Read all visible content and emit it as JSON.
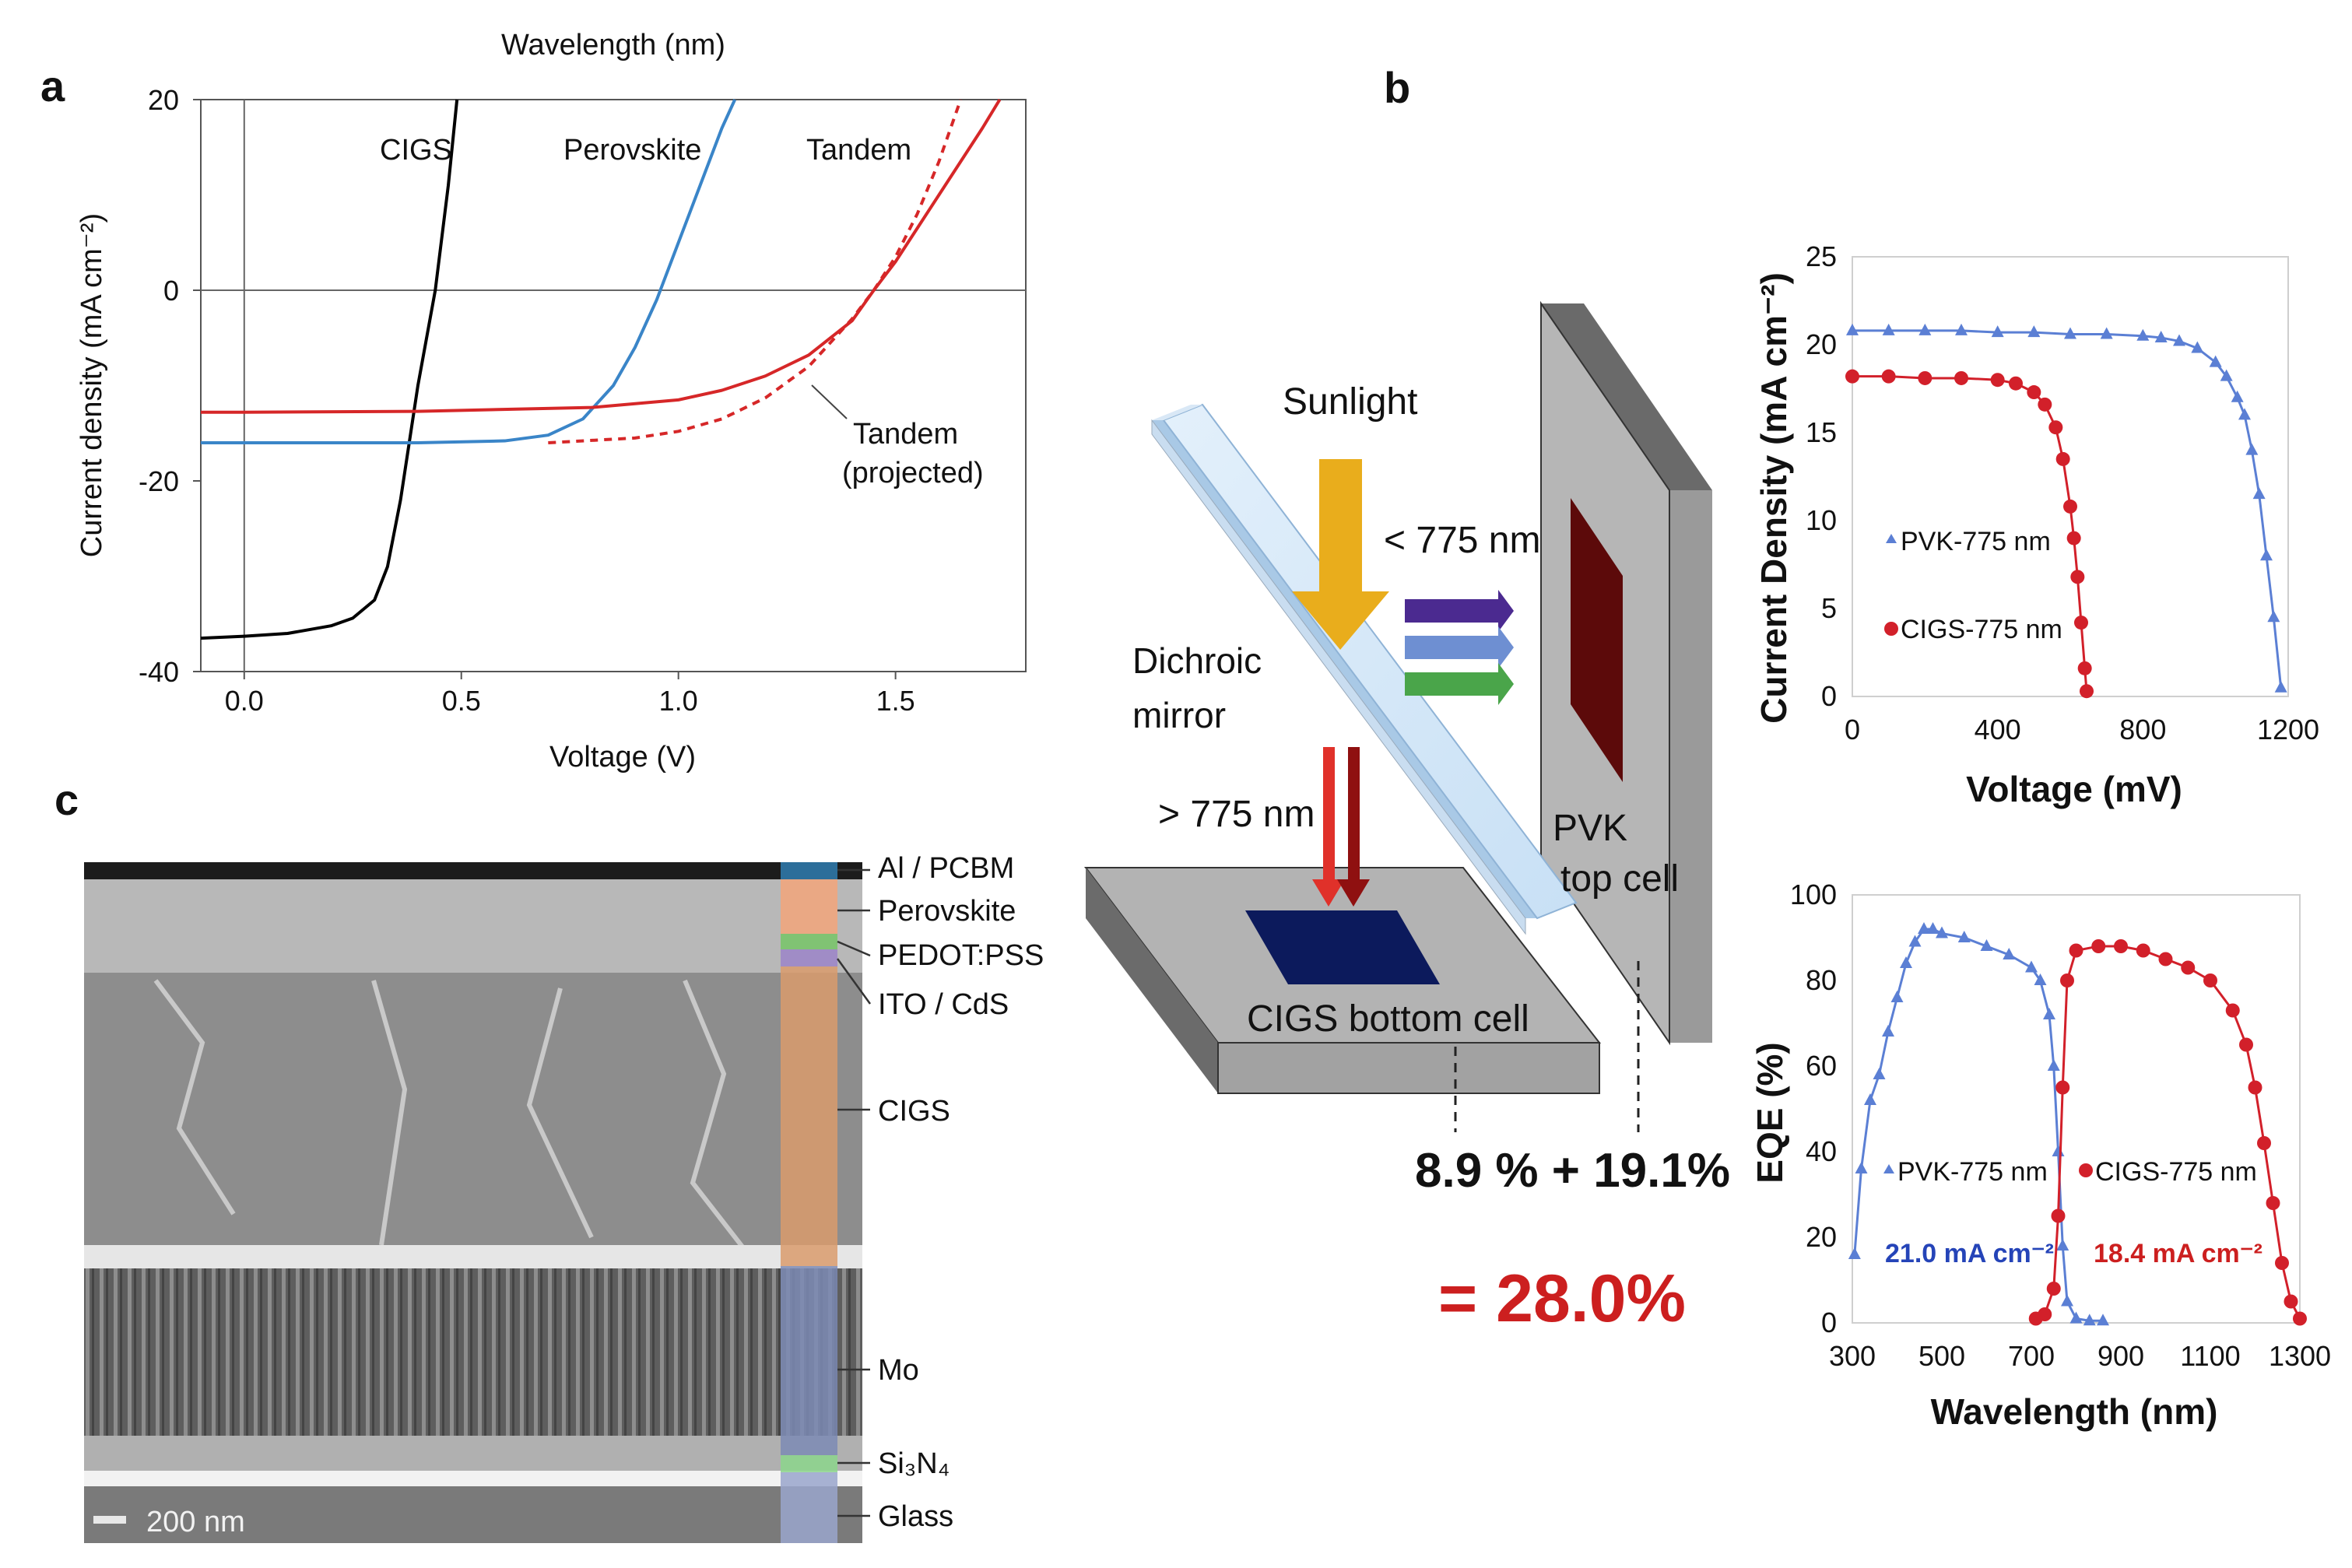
{
  "panels": {
    "a": "a",
    "b": "b",
    "c": "c"
  },
  "chart_a": {
    "type": "line",
    "top_label": "Wavelength (nm)",
    "xlabel": "Voltage (V)",
    "ylabel": "Current density (mA cm⁻²)",
    "xlim": [
      -0.1,
      1.8
    ],
    "ylim": [
      -40,
      20
    ],
    "x_ticks": [
      0.0,
      0.5,
      1.0,
      1.5
    ],
    "x_tick_labels": [
      "0.0",
      "0.5",
      "1.0",
      "1.5"
    ],
    "y_ticks": [
      -40,
      -20,
      0,
      20
    ],
    "y_tick_labels": [
      "-40",
      "-20",
      "0",
      "20"
    ],
    "series": [
      {
        "name": "CIGS",
        "color": "#000000",
        "dash": false,
        "x": [
          -0.1,
          0.0,
          0.1,
          0.2,
          0.25,
          0.3,
          0.33,
          0.36,
          0.4,
          0.44,
          0.47,
          0.49
        ],
        "y": [
          -36.5,
          -36.3,
          -36,
          -35.2,
          -34.4,
          -32.5,
          -29,
          -22,
          -10,
          0,
          11,
          20
        ]
      },
      {
        "name": "Perovskite",
        "color": "#3a85c8",
        "dash": false,
        "x": [
          -0.1,
          0.0,
          0.2,
          0.4,
          0.6,
          0.7,
          0.78,
          0.85,
          0.9,
          0.95,
          1.0,
          1.05,
          1.1,
          1.13
        ],
        "y": [
          -16,
          -16,
          -16,
          -16,
          -15.8,
          -15.2,
          -13.5,
          -10,
          -6,
          -1,
          5,
          11,
          17,
          20
        ]
      },
      {
        "name": "Tandem",
        "color": "#d62728",
        "dash": false,
        "x": [
          -0.1,
          0.0,
          0.4,
          0.8,
          1.0,
          1.1,
          1.2,
          1.3,
          1.4,
          1.45,
          1.5,
          1.55,
          1.6,
          1.65,
          1.7,
          1.74
        ],
        "y": [
          -12.8,
          -12.8,
          -12.7,
          -12.3,
          -11.5,
          -10.5,
          -9,
          -6.8,
          -3.2,
          0,
          3,
          6.5,
          10,
          13.5,
          17,
          20
        ]
      },
      {
        "name": "Tandem (projected)",
        "color": "#d62728",
        "dash": true,
        "x": [
          0.7,
          0.9,
          1.0,
          1.1,
          1.2,
          1.3,
          1.4,
          1.45,
          1.5,
          1.55,
          1.6,
          1.65
        ],
        "y": [
          -16,
          -15.5,
          -14.8,
          -13.5,
          -11.3,
          -8,
          -3,
          0,
          3.5,
          8,
          13.5,
          20
        ]
      }
    ],
    "labels": {
      "cigs": "CIGS",
      "perovskite": "Perovskite",
      "tandem": "Tandem",
      "tandem_projected_1": "Tandem",
      "tandem_projected_2": "(projected)"
    }
  },
  "diagram_b": {
    "sunlight": "Sunlight",
    "short_wl": "< 775 nm",
    "long_wl": "> 775 nm",
    "mirror_1": "Dichroic",
    "mirror_2": "mirror",
    "pvk_1": "PVK",
    "pvk_2": "top cell",
    "cigs_cell": "CIGS bottom cell",
    "sum": "8.9 % + 19.1%",
    "total": "= 28.0%"
  },
  "chart_b1": {
    "type": "scatter",
    "xlabel": "Voltage (mV)",
    "ylabel": "Current Density (mA cm⁻²)",
    "xlim": [
      0,
      1200
    ],
    "ylim": [
      0,
      25
    ],
    "x_tick_labels": [
      "0",
      "400",
      "800",
      "1200"
    ],
    "y_tick_labels": [
      "0",
      "5",
      "10",
      "15",
      "20",
      "25"
    ],
    "series": [
      {
        "name": "PVK-775 nm",
        "color": "#5b7fd4",
        "marker": "triangle",
        "x": [
          0,
          100,
          200,
          300,
          400,
          500,
          600,
          700,
          800,
          850,
          900,
          950,
          1000,
          1030,
          1060,
          1080,
          1100,
          1120,
          1140,
          1160,
          1180
        ],
        "y": [
          20.8,
          20.8,
          20.8,
          20.8,
          20.7,
          20.7,
          20.6,
          20.6,
          20.5,
          20.4,
          20.2,
          19.8,
          19,
          18.2,
          17,
          16,
          14,
          11.5,
          8,
          4.5,
          0.5
        ]
      },
      {
        "name": "CIGS-775 nm",
        "color": "#d2202a",
        "marker": "circle",
        "x": [
          0,
          100,
          200,
          300,
          400,
          450,
          500,
          530,
          560,
          580,
          600,
          610,
          620,
          630,
          640,
          645
        ],
        "y": [
          18.2,
          18.2,
          18.1,
          18.1,
          18,
          17.8,
          17.3,
          16.6,
          15.3,
          13.5,
          10.8,
          9,
          6.8,
          4.2,
          1.6,
          0.3
        ]
      }
    ]
  },
  "chart_b2": {
    "type": "scatter",
    "xlabel": "Wavelength (nm)",
    "ylabel": "EQE (%)",
    "xlim": [
      300,
      1300
    ],
    "ylim": [
      0,
      100
    ],
    "x_tick_labels": [
      "300",
      "500",
      "700",
      "900",
      "1100",
      "1300"
    ],
    "y_tick_labels": [
      "0",
      "20",
      "40",
      "60",
      "80",
      "100"
    ],
    "annot_pvk": "21.0 mA cm⁻²",
    "annot_cigs": "18.4 mA cm⁻²",
    "series": [
      {
        "name": "PVK-775 nm",
        "color": "#5b7fd4",
        "marker": "triangle",
        "x": [
          305,
          320,
          340,
          360,
          380,
          400,
          420,
          440,
          460,
          480,
          500,
          550,
          600,
          650,
          700,
          720,
          740,
          750,
          760,
          770,
          780,
          800,
          830,
          860
        ],
        "y": [
          16,
          36,
          52,
          58,
          68,
          76,
          84,
          89,
          92,
          92,
          91,
          90,
          88,
          86,
          83,
          80,
          72,
          60,
          40,
          18,
          5,
          1,
          0.5,
          0.5
        ]
      },
      {
        "name": "CIGS-775 nm",
        "color": "#d2202a",
        "marker": "circle",
        "x": [
          710,
          730,
          750,
          760,
          770,
          780,
          800,
          850,
          900,
          950,
          1000,
          1050,
          1100,
          1150,
          1180,
          1200,
          1220,
          1240,
          1260,
          1280,
          1300
        ],
        "y": [
          1,
          2,
          8,
          25,
          55,
          80,
          87,
          88,
          88,
          87,
          85,
          83,
          80,
          73,
          65,
          55,
          42,
          28,
          14,
          5,
          1
        ]
      }
    ]
  },
  "sem_c": {
    "scale_bar": "200 nm",
    "layers": [
      "Al / PCBM",
      "Perovskite",
      "PEDOT:PSS",
      "ITO / CdS",
      "CIGS",
      "Mo",
      "Si₃N₄",
      "Glass"
    ],
    "colors": {
      "al_pcbm": "#2f7db0",
      "perovskite": "#f2a47a",
      "pedot": "#76c466",
      "ito": "#9b84c8",
      "cigs": "#d99b6c",
      "mo": "#7d8bb5",
      "si3n4": "#8cd68c",
      "glass": "#9aa6cc"
    }
  }
}
